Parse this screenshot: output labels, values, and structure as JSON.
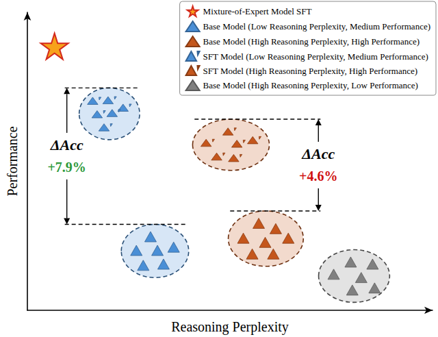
{
  "chart_data": {
    "type": "scatter",
    "xlabel": "Reasoning Perplexity",
    "ylabel": "Performance",
    "xlim": [
      0,
      100
    ],
    "ylim": [
      0,
      100
    ],
    "grid": false,
    "tick_labels": false,
    "legend": "top-right",
    "series": [
      {
        "name": "Mixture-of-Expert Model SFT",
        "color": "#f7a21b",
        "marker": "star",
        "x": [
          6.7
        ],
        "values": [
          88.6
        ]
      },
      {
        "name": "Base Model (Low Reasoning Perplexity, Medium Performance)",
        "color": "#4a8fd6",
        "marker": "triangle",
        "x": [
          30.4,
          26.9,
          32.1,
          36.1,
          28.6,
          33.6
        ],
        "values": [
          24.7,
          20.1,
          20.1,
          21.2,
          15.1,
          15.5
        ]
      },
      {
        "name": "Base Model (High Reasoning Perplexity, High Performance)",
        "color": "#c4561c",
        "marker": "triangle",
        "x": [
          57.1,
          61.3,
          53.3,
          58.7,
          64.4,
          55.5,
          60.7
        ],
        "values": [
          29.2,
          27.4,
          24.2,
          22.8,
          24.2,
          18.9,
          18.9
        ]
      },
      {
        "name": "SFT Model (Low Reasoning Perplexity, Medium Performance)",
        "color": "#4a8fd6",
        "marker": "triangle-prime",
        "x": [
          16.5,
          20.3,
          24.0,
          17.6,
          21.3,
          19.3
        ],
        "values": [
          70.3,
          70.5,
          68.0,
          65.8,
          66.2,
          61.4
        ]
      },
      {
        "name": "SFT Model (High Reasoning Perplexity, High Performance)",
        "color": "#c4561c",
        "marker": "triangle-prime",
        "x": [
          49.9,
          44.5,
          52.1,
          56.0,
          47.1,
          51.3
        ],
        "values": [
          60.0,
          56.2,
          55.9,
          57.1,
          51.6,
          51.1
        ]
      },
      {
        "name": "Base Model (High Reasoning Perplexity, Low Performance)",
        "color": "#808080",
        "marker": "triangle",
        "x": [
          79.8,
          85.2,
          75.6,
          82.4,
          85.7,
          80.2
        ],
        "values": [
          16.2,
          15.5,
          12.1,
          11.0,
          7.5,
          6.8
        ]
      }
    ],
    "annotations": [
      {
        "label": "ΔAcc",
        "value": 7.9,
        "value_label": "+7.9%",
        "color": "#2e9a3c",
        "between": [
          "Base Model (Low Reasoning Perplexity, Medium Performance)",
          "SFT Model (Low Reasoning Perplexity, Medium Performance)"
        ]
      },
      {
        "label": "ΔAcc",
        "value": 4.6,
        "value_label": "+4.6%",
        "color": "#d01010",
        "between": [
          "Base Model (High Reasoning Perplexity, High Performance)",
          "SFT Model (High Reasoning Perplexity, High Performance)"
        ]
      }
    ]
  }
}
